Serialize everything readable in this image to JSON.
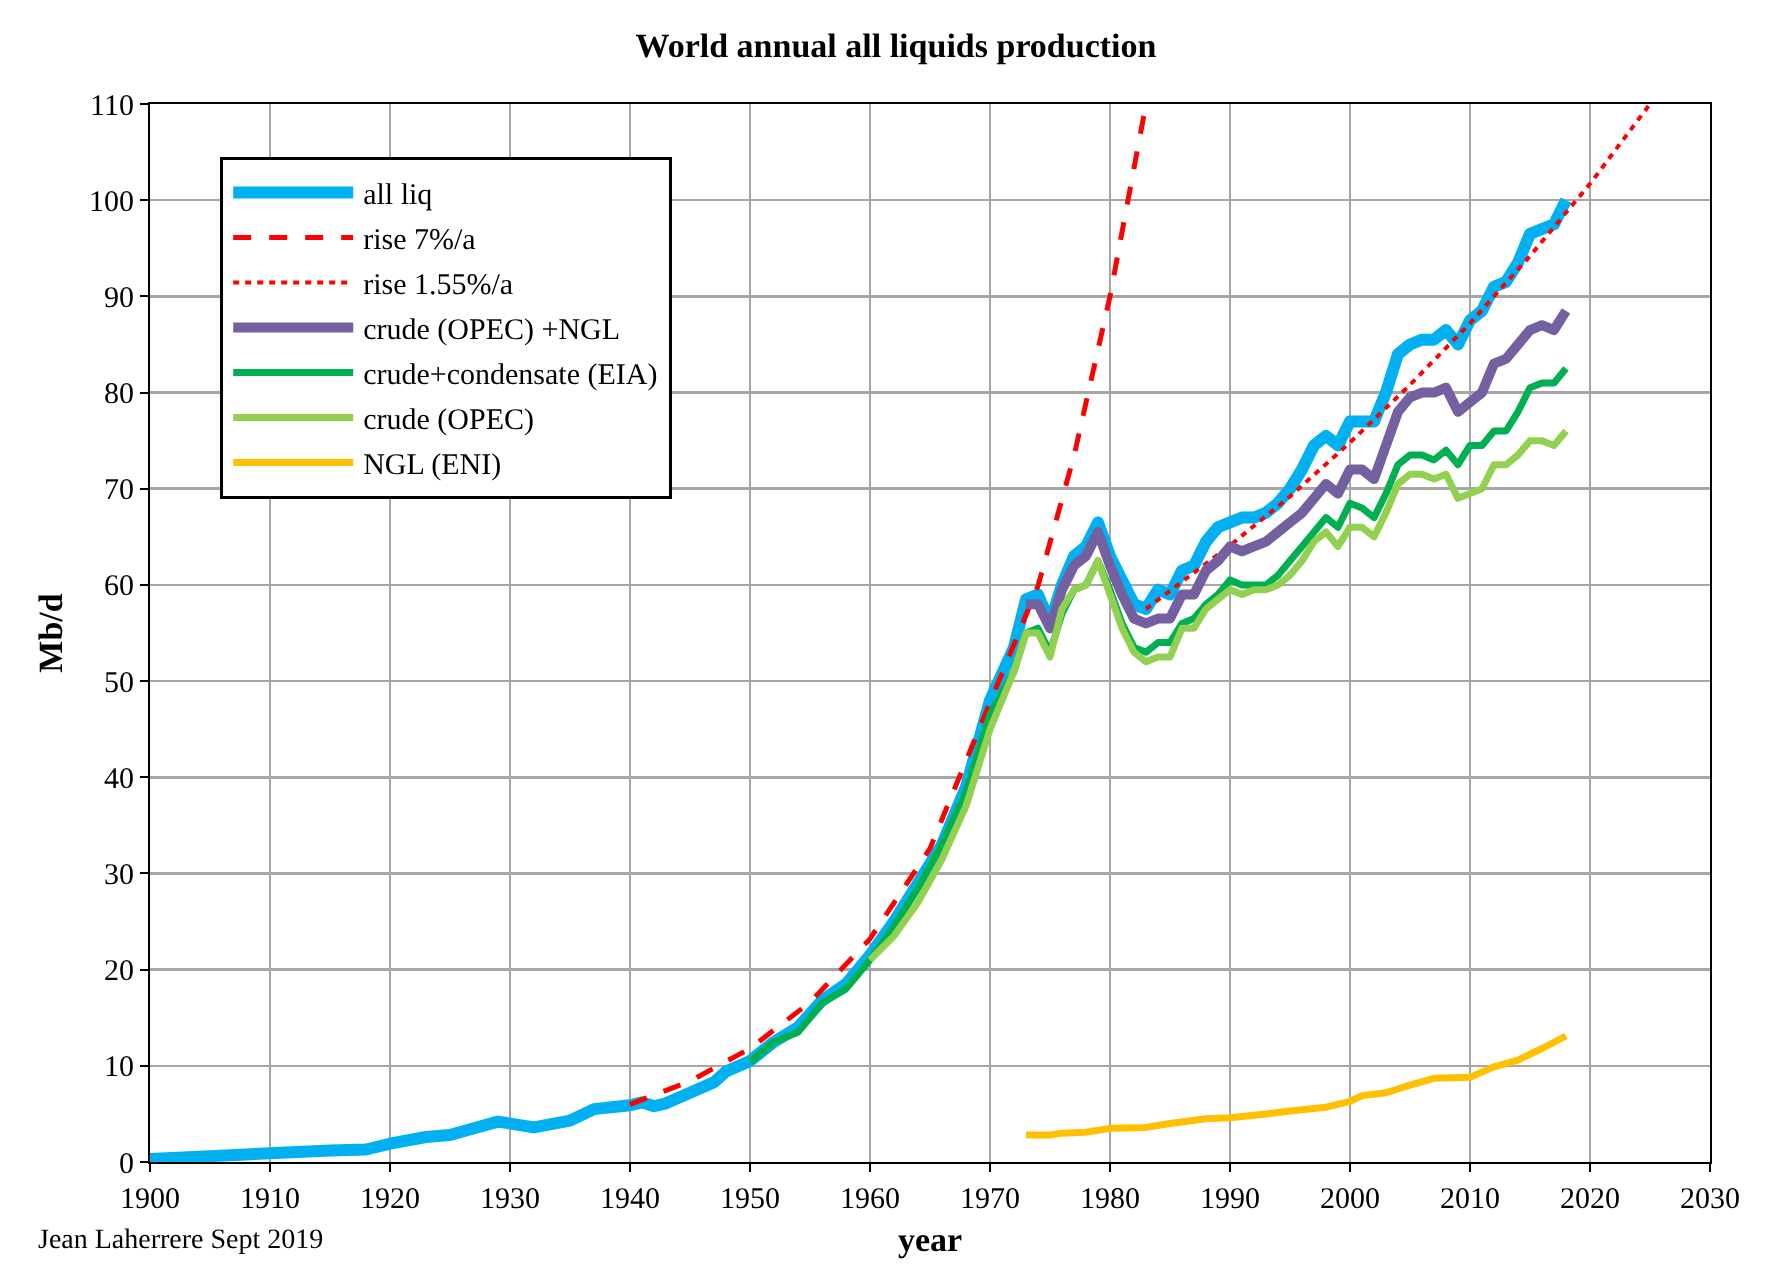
{
  "chart_data": {
    "type": "line",
    "title": "World annual all liquids production",
    "xlabel": "year",
    "ylabel": "Mb/d",
    "xlim": [
      1900,
      2030
    ],
    "xticks": [
      1900,
      1910,
      1920,
      1930,
      1940,
      1950,
      1960,
      1970,
      1980,
      1990,
      2000,
      2010,
      2020,
      2030
    ],
    "ylim": [
      0,
      110
    ],
    "yticks": [
      0,
      10,
      20,
      30,
      40,
      50,
      60,
      70,
      80,
      90,
      100,
      110
    ],
    "grid": true,
    "legend": "top left",
    "marker": "none",
    "line_style": "solid",
    "annotations": [
      "Jean Laherrere Sept 2019"
    ],
    "series": [
      {
        "name": "all liq",
        "color": "#00b0f0",
        "x": [
          1900,
          1905,
          1910,
          1915,
          1918,
          1920,
          1923,
          1925,
          1927,
          1929,
          1932,
          1935,
          1937,
          1940,
          1941,
          1942,
          1943,
          1945,
          1947,
          1948,
          1950,
          1952,
          1954,
          1956,
          1958,
          1960,
          1962,
          1964,
          1966,
          1968,
          1970,
          1972,
          1973,
          1974,
          1975,
          1976,
          1977,
          1978,
          1979,
          1980,
          1981,
          1982,
          1983,
          1984,
          1985,
          1986,
          1987,
          1988,
          1989,
          1990,
          1991,
          1992,
          1993,
          1994,
          1995,
          1996,
          1997,
          1998,
          1999,
          2000,
          2001,
          2002,
          2003,
          2004,
          2005,
          2006,
          2007,
          2008,
          2009,
          2010,
          2011,
          2012,
          2013,
          2014,
          2015,
          2016,
          2017,
          2018
        ],
        "values": [
          0.3,
          0.6,
          0.9,
          1.2,
          1.3,
          1.9,
          2.6,
          2.8,
          3.5,
          4.2,
          3.6,
          4.3,
          5.5,
          5.9,
          6.2,
          5.8,
          6.1,
          7.2,
          8.3,
          9.4,
          10.5,
          12.5,
          14,
          16.8,
          18.5,
          21.5,
          25,
          29,
          33,
          39,
          48,
          53.5,
          58.5,
          59,
          56,
          60,
          63,
          64,
          66.5,
          63,
          60.5,
          58,
          57.5,
          59.5,
          59,
          61.5,
          62,
          64.5,
          66,
          66.5,
          67,
          67,
          67.5,
          68.5,
          70,
          72,
          74.5,
          75.5,
          74.5,
          77,
          77,
          77,
          80,
          84,
          85,
          85.5,
          85.5,
          86.5,
          85,
          87.5,
          88.5,
          91,
          91.5,
          93.5,
          96.5,
          97,
          97.5,
          100
        ]
      },
      {
        "name": "rise 7%/a",
        "color": "#ff0000",
        "line_style": "dashed",
        "x": [
          1940,
          1945,
          1950,
          1955,
          1960,
          1965,
          1974,
          1977,
          1980,
          1983
        ],
        "values": [
          6,
          8.4,
          11.8,
          16.6,
          23.2,
          32.6,
          59.9,
          73.4,
          90,
          110
        ]
      },
      {
        "name": "rise 1.55%/a",
        "color": "#ff0000",
        "line_style": "dotted",
        "x": [
          1983,
          1990,
          1995,
          2000,
          2005,
          2010,
          2015,
          2020,
          2025
        ],
        "values": [
          57.5,
          64.1,
          69.2,
          74.8,
          80.8,
          87.2,
          94.2,
          101.7,
          110
        ]
      },
      {
        "name": "crude (OPEC) +NGL",
        "color": "#7460a0",
        "x": [
          1973,
          1974,
          1975,
          1976,
          1977,
          1978,
          1979,
          1980,
          1981,
          1982,
          1983,
          1984,
          1985,
          1986,
          1987,
          1988,
          1989,
          1990,
          1991,
          1992,
          1993,
          1994,
          1995,
          1996,
          1997,
          1998,
          1999,
          2000,
          2001,
          2002,
          2003,
          2004,
          2005,
          2006,
          2007,
          2008,
          2009,
          2010,
          2011,
          2012,
          2013,
          2014,
          2015,
          2016,
          2017,
          2018
        ],
        "values": [
          58,
          58,
          55.5,
          59.5,
          62,
          63,
          65.5,
          62,
          59,
          56.5,
          56,
          56.5,
          56.5,
          59,
          59,
          61.5,
          62.5,
          64,
          63.5,
          64,
          64.5,
          65.5,
          66.5,
          67.5,
          69,
          70.5,
          69.5,
          72,
          72,
          71,
          74.5,
          78,
          79.5,
          80,
          80,
          80.5,
          78,
          79,
          80,
          83,
          83.5,
          85,
          86.5,
          87,
          86.5,
          88.5
        ]
      },
      {
        "name": "crude+condensate (EIA)",
        "color": "#00b050",
        "x": [
          1950,
          1952,
          1954,
          1956,
          1958,
          1960,
          1962,
          1964,
          1966,
          1968,
          1970,
          1972,
          1973,
          1974,
          1975,
          1976,
          1977,
          1978,
          1979,
          1980,
          1981,
          1982,
          1983,
          1984,
          1985,
          1986,
          1987,
          1988,
          1989,
          1990,
          1991,
          1992,
          1993,
          1994,
          1995,
          1996,
          1997,
          1998,
          1999,
          2000,
          2001,
          2002,
          2003,
          2004,
          2005,
          2006,
          2007,
          2008,
          2009,
          2010,
          2011,
          2012,
          2013,
          2014,
          2015,
          2016,
          2017,
          2018
        ],
        "values": [
          10.4,
          12.5,
          13.5,
          16.5,
          18,
          21,
          24.5,
          28.5,
          33,
          38.5,
          46.5,
          51,
          55,
          55.5,
          53,
          57,
          59.5,
          60,
          62.5,
          59.5,
          56,
          53.5,
          53,
          54,
          54,
          56,
          56.5,
          58,
          59,
          60.5,
          60,
          60,
          60,
          61,
          62.5,
          64,
          65.5,
          67,
          66,
          68.5,
          68,
          67,
          69.5,
          72.5,
          73.5,
          73.5,
          73,
          74,
          72.5,
          74.5,
          74.5,
          76,
          76,
          78,
          80.5,
          81,
          81,
          82.5
        ]
      },
      {
        "name": "crude (OPEC)",
        "color": "#92d050",
        "x": [
          1960,
          1962,
          1964,
          1966,
          1968,
          1970,
          1972,
          1973,
          1974,
          1975,
          1976,
          1977,
          1978,
          1979,
          1980,
          1981,
          1982,
          1983,
          1984,
          1985,
          1986,
          1987,
          1988,
          1989,
          1990,
          1991,
          1992,
          1993,
          1994,
          1995,
          1996,
          1997,
          1998,
          1999,
          2000,
          2001,
          2002,
          2003,
          2004,
          2005,
          2006,
          2007,
          2008,
          2009,
          2010,
          2011,
          2012,
          2013,
          2014,
          2015,
          2016,
          2017,
          2018
        ],
        "values": [
          21,
          23.5,
          27,
          31.5,
          37,
          45,
          51,
          55,
          55,
          52.5,
          57.5,
          59.5,
          60,
          62.5,
          59,
          55.5,
          53,
          52,
          52.5,
          52.5,
          55.5,
          55.5,
          57.5,
          58.5,
          59.5,
          59,
          59.5,
          59.5,
          60,
          61,
          62.5,
          64.5,
          65.5,
          64,
          66,
          66,
          65,
          67.5,
          70.5,
          71.5,
          71.5,
          71,
          71.5,
          69,
          69.5,
          70,
          72.5,
          72.5,
          73.5,
          75,
          75,
          74.5,
          76
        ]
      },
      {
        "name": "NGL (ENI)",
        "color": "#ffc000",
        "x": [
          1973,
          1975,
          1976,
          1978,
          1980,
          1983,
          1985,
          1988,
          1990,
          1993,
          1995,
          1998,
          2000,
          2001,
          2003,
          2005,
          2007,
          2010,
          2012,
          2014,
          2016,
          2018
        ],
        "values": [
          2.8,
          2.8,
          3.0,
          3.1,
          3.5,
          3.6,
          4.0,
          4.5,
          4.6,
          5.0,
          5.3,
          5.7,
          6.3,
          6.9,
          7.2,
          8.0,
          8.7,
          8.8,
          9.9,
          10.6,
          11.8,
          13.1
        ]
      }
    ]
  }
}
